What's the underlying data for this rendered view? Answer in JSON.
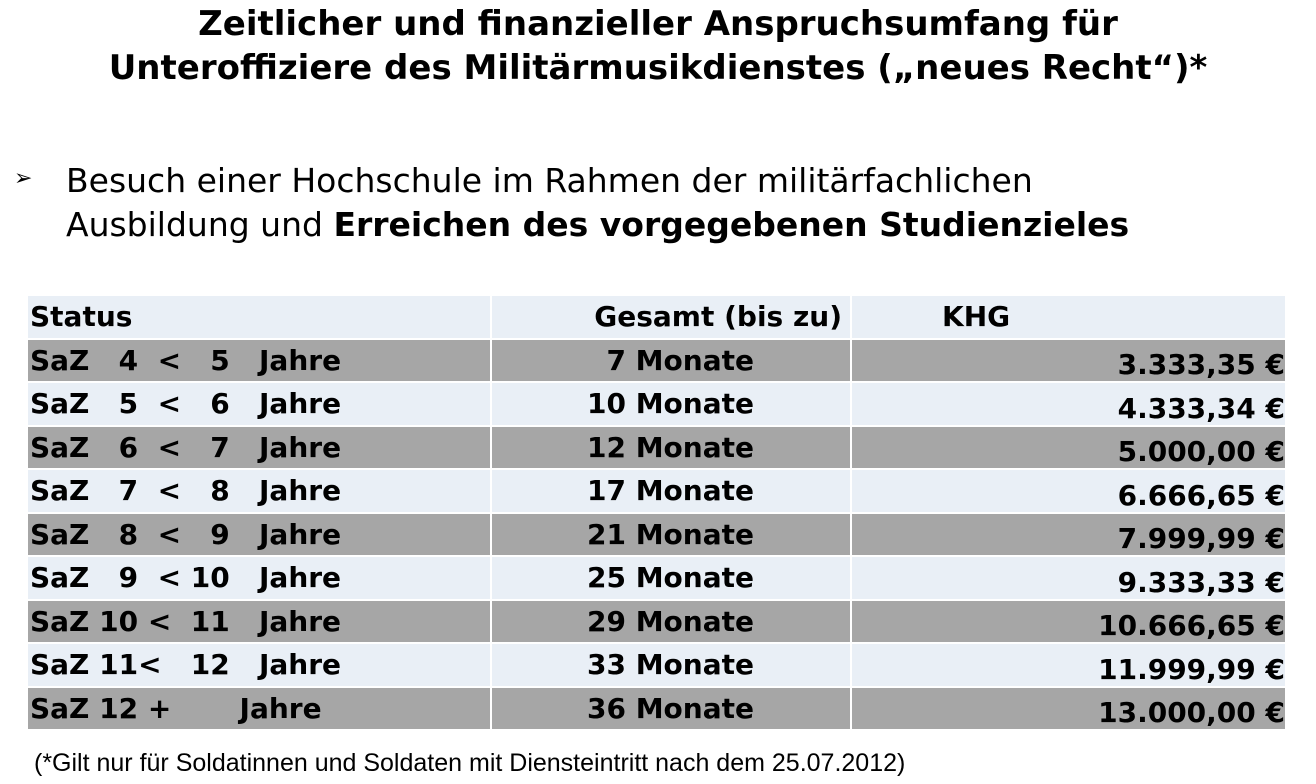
{
  "title": {
    "line1": "Zeitlicher und finanzieller Anspruchsumfang für",
    "line2": "Unteroffiziere des Militärmusikdienstes („neues Recht“)*"
  },
  "bullet": {
    "symbol": "➢",
    "line1": "Besuch einer Hochschule im Rahmen der militärfachlichen",
    "line2_plain": "Ausbildung und ",
    "line2_bold": "Erreichen des vorgegebenen Studienzieles"
  },
  "table": {
    "headers": [
      "Status",
      "Gesamt (bis zu)",
      "KHG"
    ],
    "rows": [
      {
        "status": "SaZ   4  <   5   Jahre",
        "gesamt": "7 Monate",
        "khg": "3.333,35 €"
      },
      {
        "status": "SaZ   5  <   6   Jahre",
        "gesamt": "10 Monate",
        "khg": "4.333,34 €"
      },
      {
        "status": "SaZ   6  <   7   Jahre",
        "gesamt": "12 Monate",
        "khg": "5.000,00 €"
      },
      {
        "status": "SaZ   7  <   8   Jahre",
        "gesamt": "17 Monate",
        "khg": "6.666,65 €"
      },
      {
        "status": "SaZ   8  <   9   Jahre",
        "gesamt": "21 Monate",
        "khg": "7.999,99 €"
      },
      {
        "status": "SaZ   9  < 10   Jahre",
        "gesamt": "25 Monate",
        "khg": "9.333,33 €"
      },
      {
        "status": "SaZ 10 <  11   Jahre",
        "gesamt": "29 Monate",
        "khg": "10.666,65 €"
      },
      {
        "status": "SaZ 11<   12   Jahre",
        "gesamt": "33 Monate",
        "khg": "11.999,99 €"
      },
      {
        "status": "SaZ 12 +       Jahre",
        "gesamt": "36 Monate",
        "khg": "13.000,00 €"
      }
    ]
  },
  "footnote": "(*Gilt nur für Soldatinnen und Soldaten mit Diensteintritt nach dem 25.07.2012)",
  "colors": {
    "row_dark": "#a6a6a6",
    "row_light": "#e9eff6"
  }
}
